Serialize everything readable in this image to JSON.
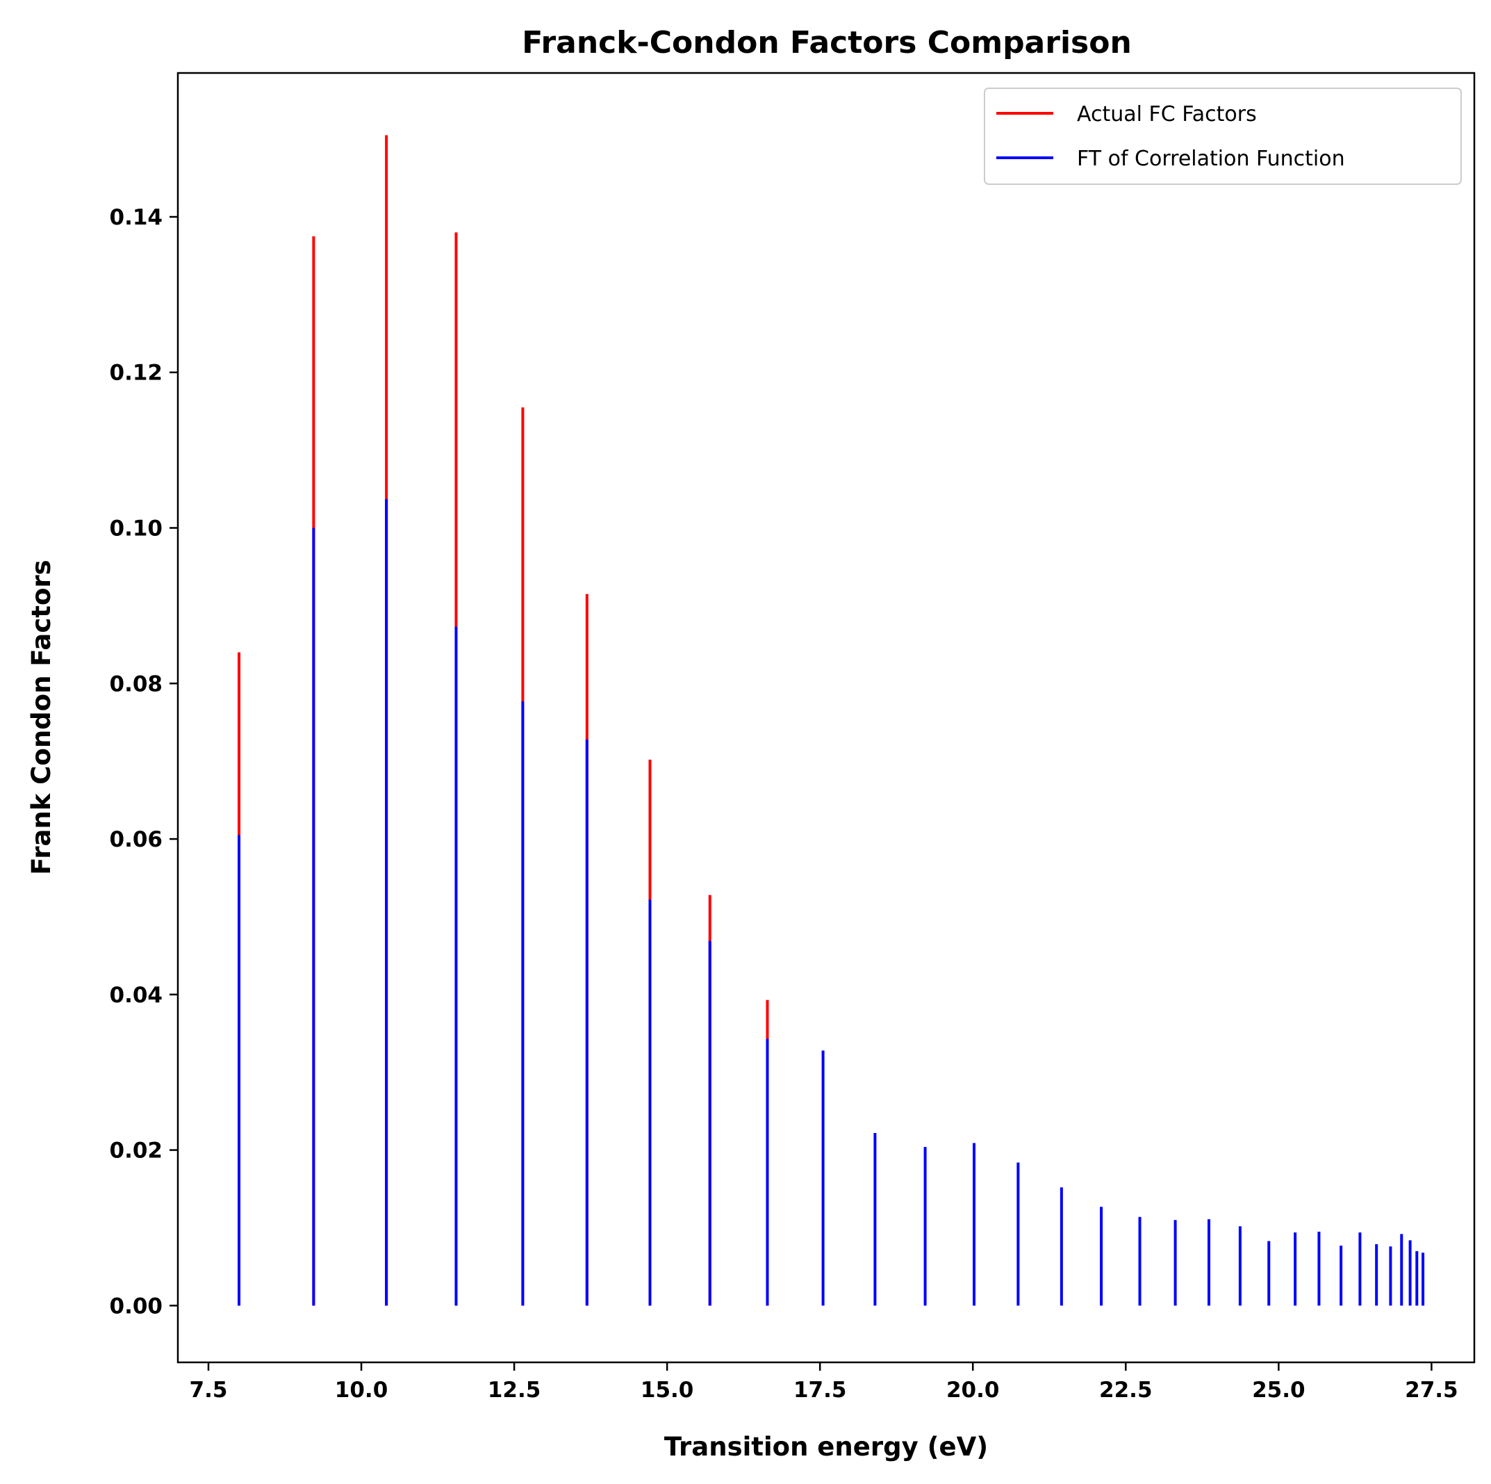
{
  "chart_data": {
    "type": "bar",
    "title": "Franck-Condon Factors Comparison",
    "xlabel": "Transition energy (eV)",
    "ylabel": "Frank Condon Factors",
    "xlim": [
      7.0,
      28.2
    ],
    "ylim": [
      -0.0073,
      0.1585
    ],
    "xticks": [
      7.5,
      10.0,
      12.5,
      15.0,
      17.5,
      20.0,
      22.5,
      25.0,
      27.5
    ],
    "xtick_labels": [
      "7.5",
      "10.0",
      "12.5",
      "15.0",
      "17.5",
      "20.0",
      "22.5",
      "25.0",
      "27.5"
    ],
    "yticks": [
      0.0,
      0.02,
      0.04,
      0.06,
      0.08,
      0.1,
      0.12,
      0.14
    ],
    "ytick_labels": [
      "0.00",
      "0.02",
      "0.04",
      "0.06",
      "0.08",
      "0.10",
      "0.12",
      "0.14"
    ],
    "grid": false,
    "legend_position": "top-right",
    "series": [
      {
        "name": "Actual FC Factors",
        "color": "#ff0000",
        "x": [
          8.0,
          9.22,
          10.41,
          11.55,
          12.64,
          13.69,
          14.72,
          15.7,
          16.64
        ],
        "values": [
          0.084,
          0.1375,
          0.1505,
          0.138,
          0.1155,
          0.0915,
          0.0702,
          0.0528,
          0.0393
        ]
      },
      {
        "name": "FT of Correlation Function",
        "color": "#0000ff",
        "x": [
          8.0,
          9.22,
          10.41,
          11.55,
          12.64,
          13.69,
          14.72,
          15.7,
          16.64,
          17.55,
          18.4,
          19.22,
          20.02,
          20.74,
          21.45,
          22.1,
          22.73,
          23.31,
          23.86,
          24.37,
          24.84,
          25.27,
          25.66,
          26.02,
          26.33,
          26.6,
          26.83,
          27.01,
          27.15,
          27.26,
          27.36
        ],
        "values": [
          0.0605,
          0.1,
          0.1037,
          0.0873,
          0.0777,
          0.0728,
          0.0522,
          0.0469,
          0.0343,
          0.0328,
          0.0222,
          0.0204,
          0.0209,
          0.0184,
          0.0152,
          0.0127,
          0.0114,
          0.011,
          0.0111,
          0.0102,
          0.0083,
          0.0094,
          0.0095,
          0.0077,
          0.0094,
          0.0079,
          0.0076,
          0.0092,
          0.0084,
          0.007,
          0.0068
        ]
      }
    ]
  }
}
